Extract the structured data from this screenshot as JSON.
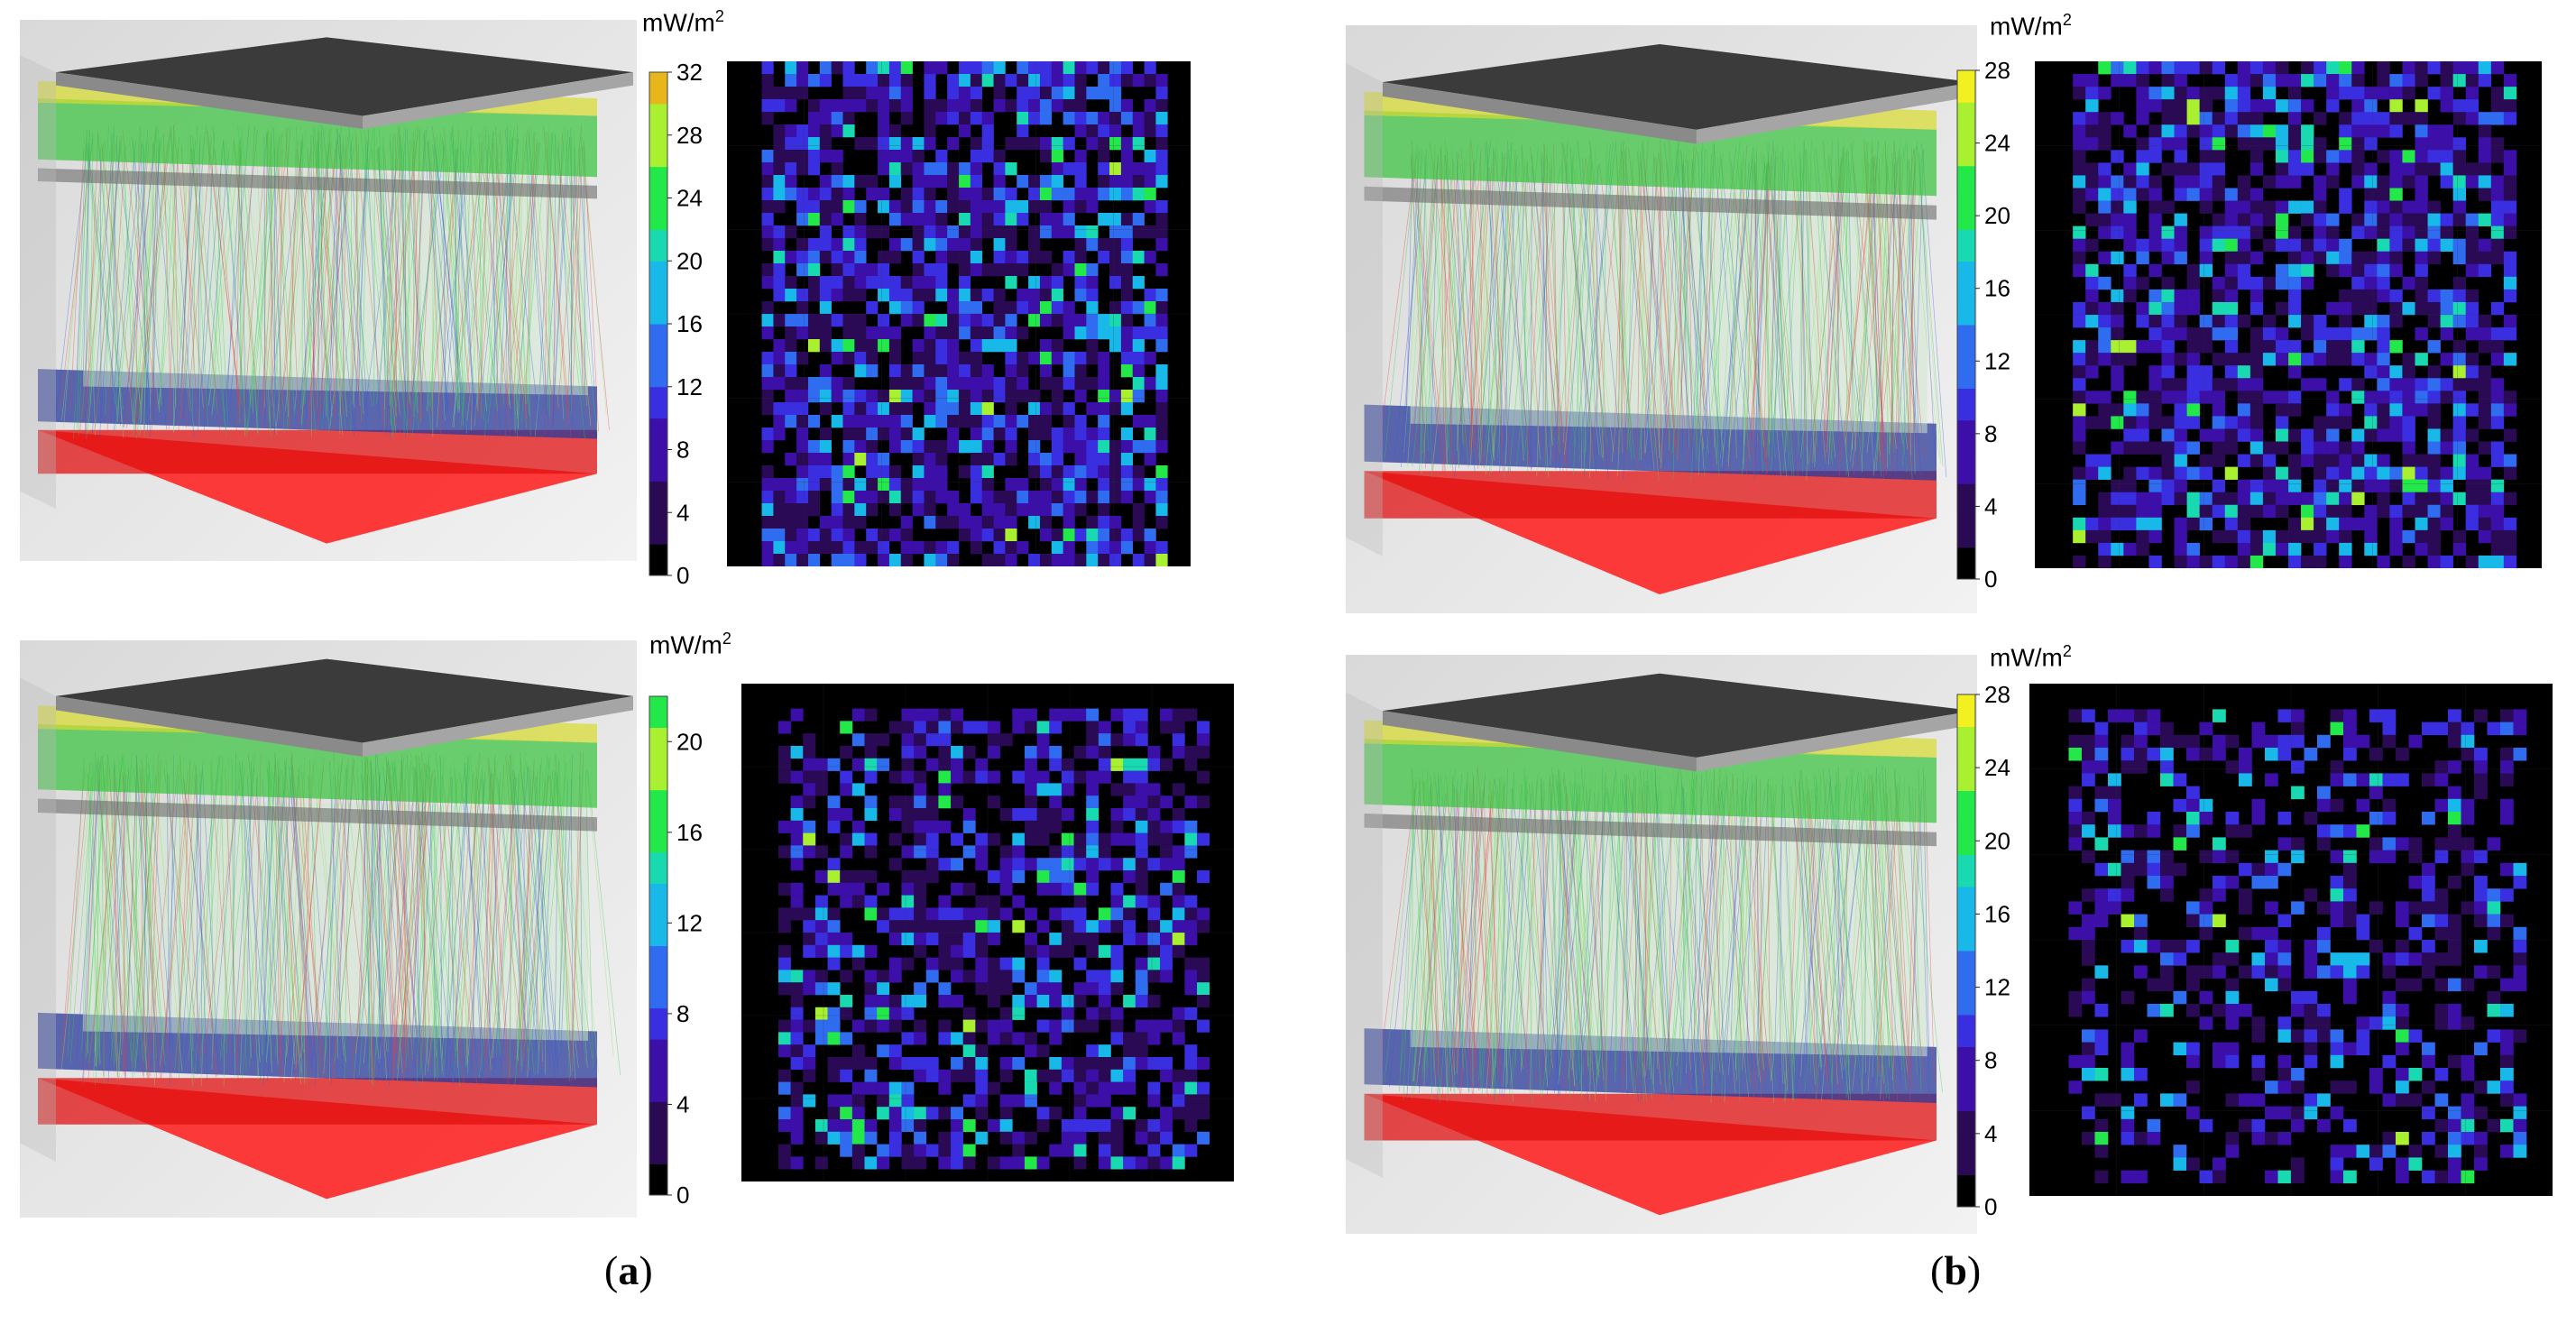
{
  "colors": {
    "scale": [
      "#000000",
      "#2a0a55",
      "#3b0fa8",
      "#3a2fe0",
      "#2f6cf0",
      "#18b8e8",
      "#18d9b0",
      "#22e84a",
      "#a8f030",
      "#f2f01e",
      "#e0b81a"
    ]
  },
  "panels": [
    {
      "id": "a-top",
      "unit_label": "mW/m",
      "unit_exp": "2",
      "max": 32,
      "ticks": [
        "0",
        "4",
        "8",
        "12",
        "16",
        "20",
        "24",
        "28",
        "32"
      ],
      "colorbar_top_color": "#e6b61a",
      "density": 0.78
    },
    {
      "id": "a-bottom",
      "unit_label": "mW/m",
      "unit_exp": "2",
      "max": 22,
      "ticks": [
        "0",
        "4",
        "8",
        "12",
        "16",
        "20"
      ],
      "colorbar_top_color": "#22e84a",
      "density": 0.6
    },
    {
      "id": "b-top",
      "unit_label": "mW/m",
      "unit_exp": "2",
      "max": 28,
      "ticks": [
        "0",
        "4",
        "8",
        "12",
        "16",
        "20",
        "24",
        "28"
      ],
      "colorbar_top_color": "#f2f01e",
      "density": 0.72
    },
    {
      "id": "b-bottom",
      "unit_label": "mW/m",
      "unit_exp": "2",
      "max": 28,
      "ticks": [
        "0",
        "4",
        "8",
        "12",
        "16",
        "20",
        "24",
        "28"
      ],
      "colorbar_top_color": "#f2f01e",
      "density": 0.45
    }
  ],
  "captions": [
    {
      "open": "(",
      "letter": "a",
      "close": ")"
    },
    {
      "open": "(",
      "letter": "b",
      "close": ")"
    }
  ]
}
